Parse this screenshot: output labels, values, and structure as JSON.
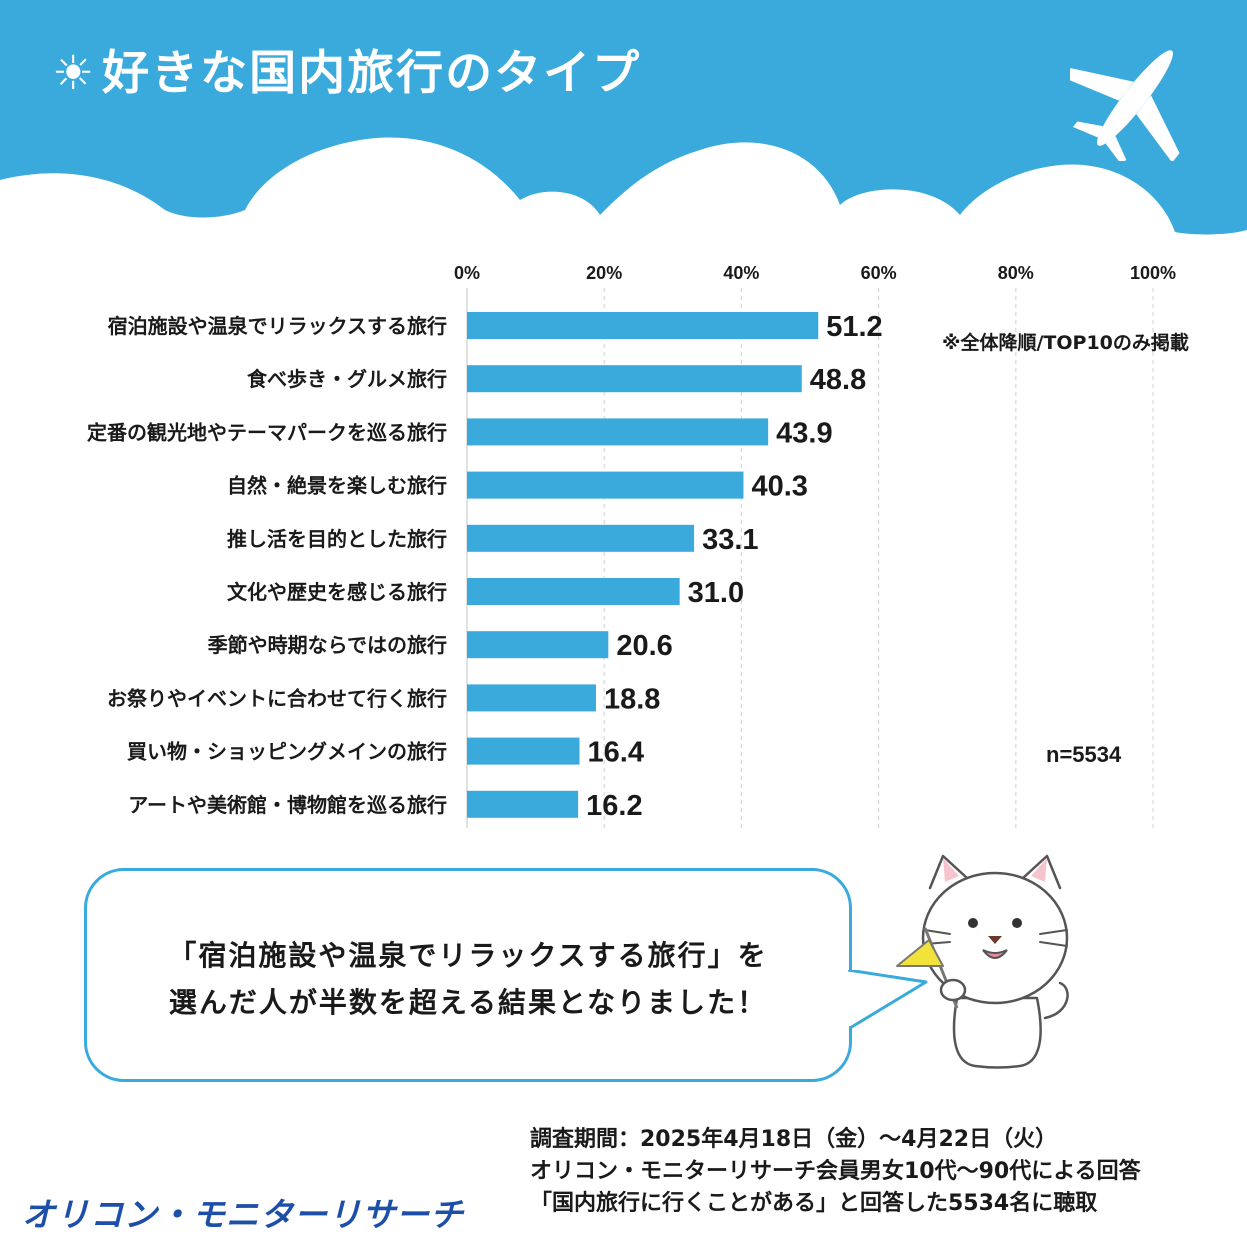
{
  "header": {
    "sun_icon": "☀",
    "title": "好きな国内旅行のタイプ",
    "plane_icon": "airplane-icon",
    "bg_color": "#3aaadc"
  },
  "chart_data": {
    "type": "bar",
    "orientation": "horizontal",
    "categories": [
      "宿泊施設や温泉でリラックスする旅行",
      "食べ歩き・グルメ旅行",
      "定番の観光地やテーマパークを巡る旅行",
      "自然・絶景を楽しむ旅行",
      "推し活を目的とした旅行",
      "文化や歴史を感じる旅行",
      "季節や時期ならではの旅行",
      "お祭りやイベントに合わせて行く旅行",
      "買い物・ショッピングメインの旅行",
      "アートや美術館・博物館を巡る旅行"
    ],
    "values": [
      51.2,
      48.8,
      43.9,
      40.3,
      33.1,
      31.0,
      20.6,
      18.8,
      16.4,
      16.2
    ],
    "value_labels": [
      "51.2",
      "48.8",
      "43.9",
      "40.3",
      "33.1",
      "31.0",
      "20.6",
      "18.8",
      "16.4",
      "16.2"
    ],
    "xlim": [
      0,
      100
    ],
    "x_ticks": [
      "0%",
      "20%",
      "40%",
      "60%",
      "80%",
      "100%"
    ],
    "grid": true,
    "bar_color": "#3aaadc"
  },
  "notes": {
    "sort_note": "※全体降順/TOP10のみ掲載",
    "n": "n=5534"
  },
  "bubble": {
    "line1": "「宿泊施設や温泉でリラックスする旅行」を",
    "line2": "選んだ人が半数を超える結果となりました！"
  },
  "survey": {
    "line1": "調査期間：2025年4月18日（金）～4月22日（火）",
    "line2": "オリコン・モニターリサーチ会員男女10代～90代による回答",
    "line3": "「国内旅行に行くことがある」と回答した5534名に聴取"
  },
  "brand": "オリコン・モニターリサーチ"
}
